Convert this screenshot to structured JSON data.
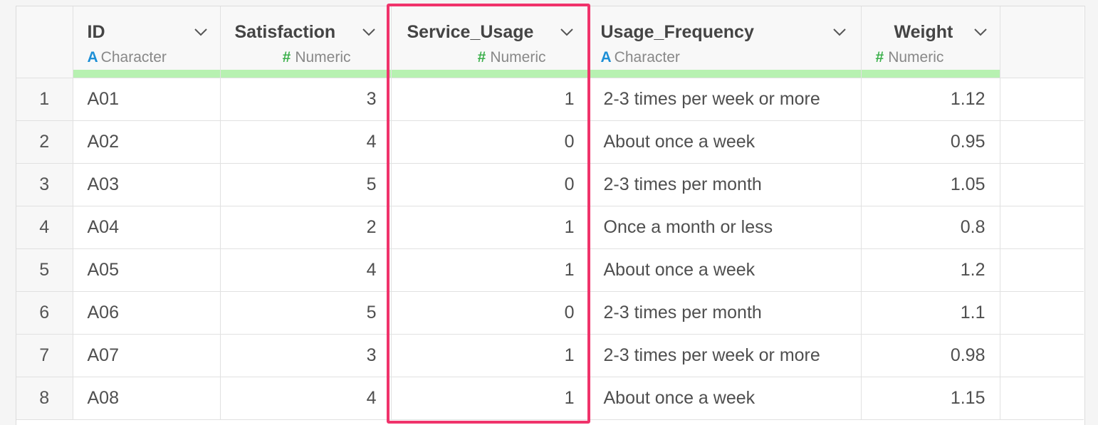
{
  "columns": [
    {
      "name": "ID",
      "type": "Character",
      "type_icon": "A"
    },
    {
      "name": "Satisfaction",
      "type": "Numeric",
      "type_icon": "#"
    },
    {
      "name": "Service_Usage",
      "type": "Numeric",
      "type_icon": "#"
    },
    {
      "name": "Usage_Frequency",
      "type": "Character",
      "type_icon": "A"
    },
    {
      "name": "Weight",
      "type": "Numeric",
      "type_icon": "#"
    }
  ],
  "rows": [
    {
      "n": "1",
      "id": "A01",
      "satisfaction": "3",
      "service_usage": "1",
      "usage_frequency": "2-3 times per week or more",
      "weight": "1.12"
    },
    {
      "n": "2",
      "id": "A02",
      "satisfaction": "4",
      "service_usage": "0",
      "usage_frequency": "About once a week",
      "weight": "0.95"
    },
    {
      "n": "3",
      "id": "A03",
      "satisfaction": "5",
      "service_usage": "0",
      "usage_frequency": "2-3 times per month",
      "weight": "1.05"
    },
    {
      "n": "4",
      "id": "A04",
      "satisfaction": "2",
      "service_usage": "1",
      "usage_frequency": "Once a month or less",
      "weight": "0.8"
    },
    {
      "n": "5",
      "id": "A05",
      "satisfaction": "4",
      "service_usage": "1",
      "usage_frequency": "About once a week",
      "weight": "1.2"
    },
    {
      "n": "6",
      "id": "A06",
      "satisfaction": "5",
      "service_usage": "0",
      "usage_frequency": "2-3 times per month",
      "weight": "1.1"
    },
    {
      "n": "7",
      "id": "A07",
      "satisfaction": "3",
      "service_usage": "1",
      "usage_frequency": "2-3 times per week or more",
      "weight": "0.98"
    },
    {
      "n": "8",
      "id": "A08",
      "satisfaction": "4",
      "service_usage": "1",
      "usage_frequency": "About once a week",
      "weight": "1.15"
    }
  ],
  "colors": {
    "highlight_border": "#f0336b",
    "type_bar": "#b7f1b1",
    "character_icon": "#1d8fd6",
    "numeric_icon": "#3aaf4a"
  },
  "icons": {
    "sort_menu": "chevron-down-icon",
    "character_type": "character-type-icon",
    "numeric_type": "numeric-type-icon"
  }
}
